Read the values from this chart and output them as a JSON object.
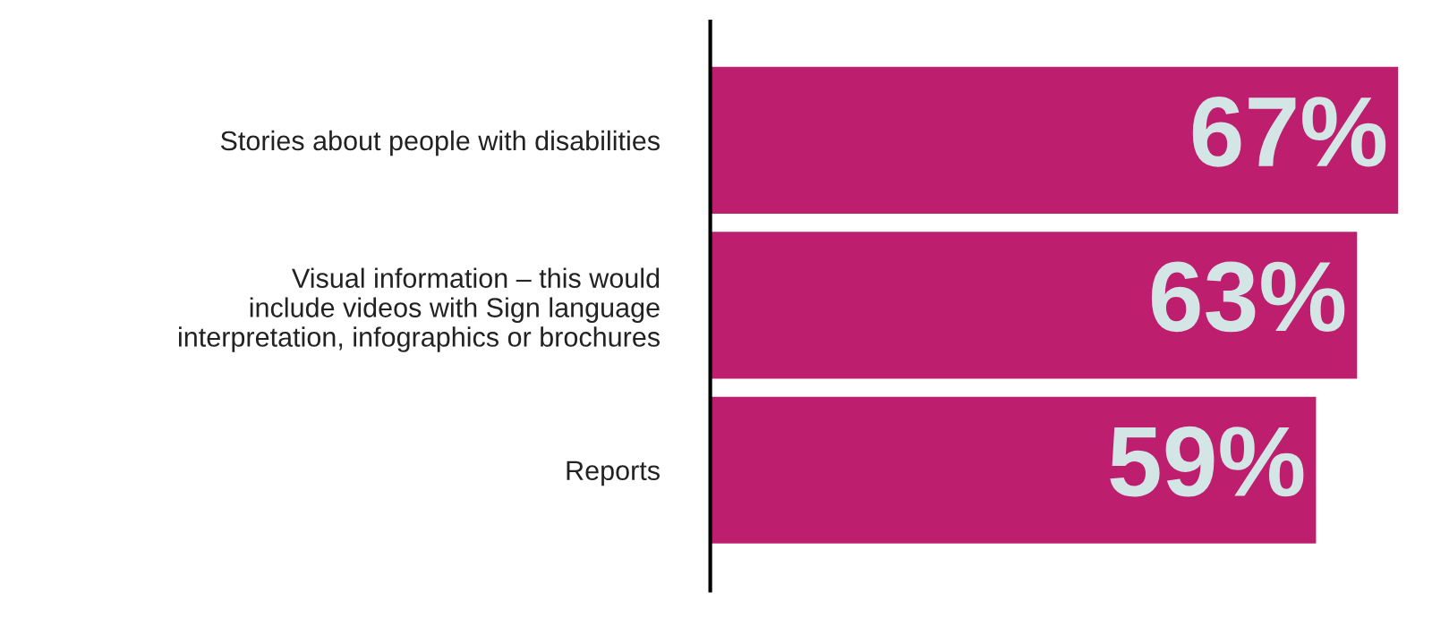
{
  "chart_data": {
    "type": "bar",
    "orientation": "horizontal",
    "categories": [
      "Stories about people with disabilities",
      "Visual information – this would\ninclude videos with Sign language\ninterpretation, infographics or brochures",
      "Reports"
    ],
    "values": [
      67,
      63,
      59
    ],
    "value_labels": [
      "67%",
      "63%",
      "59%"
    ],
    "color": "#be1e6e",
    "grid": false,
    "legend": false
  }
}
